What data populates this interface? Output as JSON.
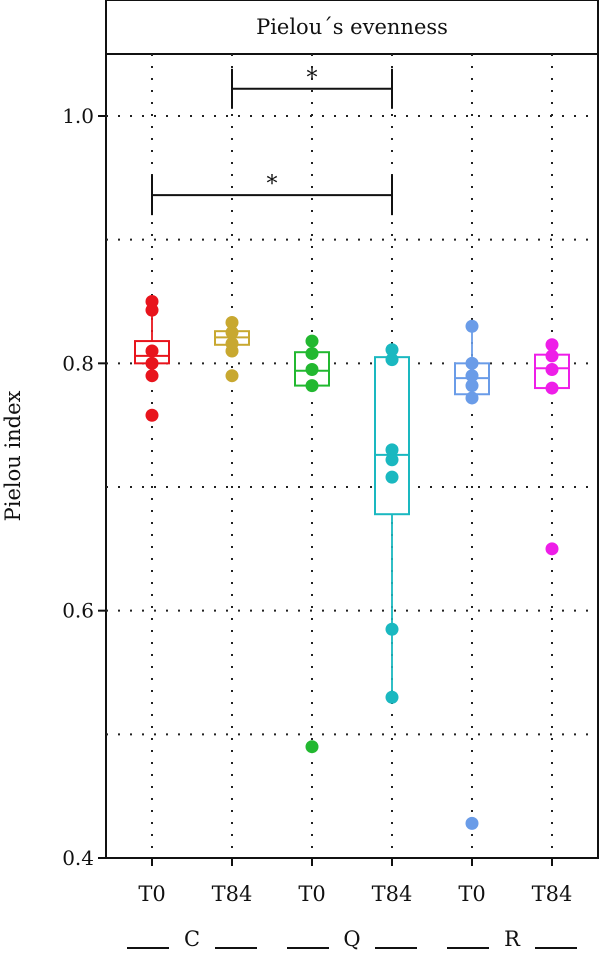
{
  "chart_data": {
    "type": "box",
    "title": "Pielou´s evenness",
    "ylabel": "Pielou index",
    "xlabel": "",
    "ylim": [
      0.4,
      1.05
    ],
    "yticks": [
      0.4,
      0.6,
      0.8,
      1.0
    ],
    "ytick_labels": [
      "0.4",
      "0.6",
      "0.8",
      "1.0"
    ],
    "grid": true,
    "categories": [
      "T0",
      "T84",
      "T0",
      "T84",
      "T0",
      "T84"
    ],
    "groups": [
      {
        "label": "C",
        "start": 0,
        "end": 1
      },
      {
        "label": "Q",
        "start": 2,
        "end": 3
      },
      {
        "label": "R",
        "start": 4,
        "end": 5
      }
    ],
    "series": [
      {
        "group": "C",
        "category": "T0",
        "color": "#e8141c",
        "box": {
          "q1": 0.8,
          "median": 0.806,
          "q3": 0.818,
          "whisker_low": 0.79,
          "whisker_high": 0.84
        },
        "points": [
          0.85,
          0.843,
          0.81,
          0.8,
          0.79,
          0.758
        ]
      },
      {
        "group": "C",
        "category": "T84",
        "color": "#c8a830",
        "box": {
          "q1": 0.815,
          "median": 0.821,
          "q3": 0.826,
          "whisker_low": 0.808,
          "whisker_high": 0.833
        },
        "points": [
          0.833,
          0.825,
          0.816,
          0.81,
          0.79
        ]
      },
      {
        "group": "Q",
        "category": "T0",
        "color": "#22b830",
        "box": {
          "q1": 0.782,
          "median": 0.794,
          "q3": 0.809,
          "whisker_low": 0.778,
          "whisker_high": 0.818
        },
        "points": [
          0.818,
          0.808,
          0.795,
          0.782,
          0.49
        ]
      },
      {
        "group": "Q",
        "category": "T84",
        "color": "#1ab8c0",
        "box": {
          "q1": 0.678,
          "median": 0.726,
          "q3": 0.805,
          "whisker_low": 0.53,
          "whisker_high": 0.811
        },
        "points": [
          0.811,
          0.803,
          0.73,
          0.722,
          0.708,
          0.585,
          0.53
        ]
      },
      {
        "group": "R",
        "category": "T0",
        "color": "#6a9ce8",
        "box": {
          "q1": 0.775,
          "median": 0.788,
          "q3": 0.8,
          "whisker_low": 0.77,
          "whisker_high": 0.83
        },
        "points": [
          0.83,
          0.8,
          0.79,
          0.782,
          0.772,
          0.428
        ]
      },
      {
        "group": "R",
        "category": "T84",
        "color": "#ee1ee8",
        "box": {
          "q1": 0.78,
          "median": 0.796,
          "q3": 0.807,
          "whisker_low": 0.778,
          "whisker_high": 0.815
        },
        "points": [
          0.815,
          0.806,
          0.795,
          0.78,
          0.65
        ]
      }
    ],
    "significance": [
      {
        "from": 1,
        "to": 3,
        "y": 1.022,
        "label": "*"
      },
      {
        "from": 0,
        "to": 3,
        "y": 0.936,
        "label": "*"
      }
    ]
  }
}
